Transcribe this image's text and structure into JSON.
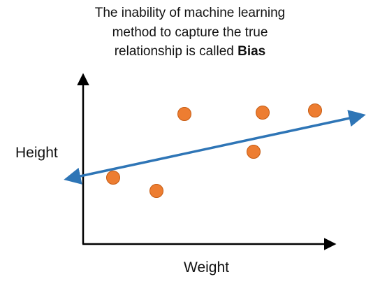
{
  "title": {
    "line1": "The inability of machine learning",
    "line2": "method to capture the true",
    "line3_prefix": "relationship is called ",
    "line3_bold": "Bias"
  },
  "axes": {
    "ylabel": "Height",
    "xlabel": "Weight"
  },
  "colors": {
    "points": "#ed7d31",
    "fit_line": "#2e75b6",
    "axes": "#000000"
  }
}
